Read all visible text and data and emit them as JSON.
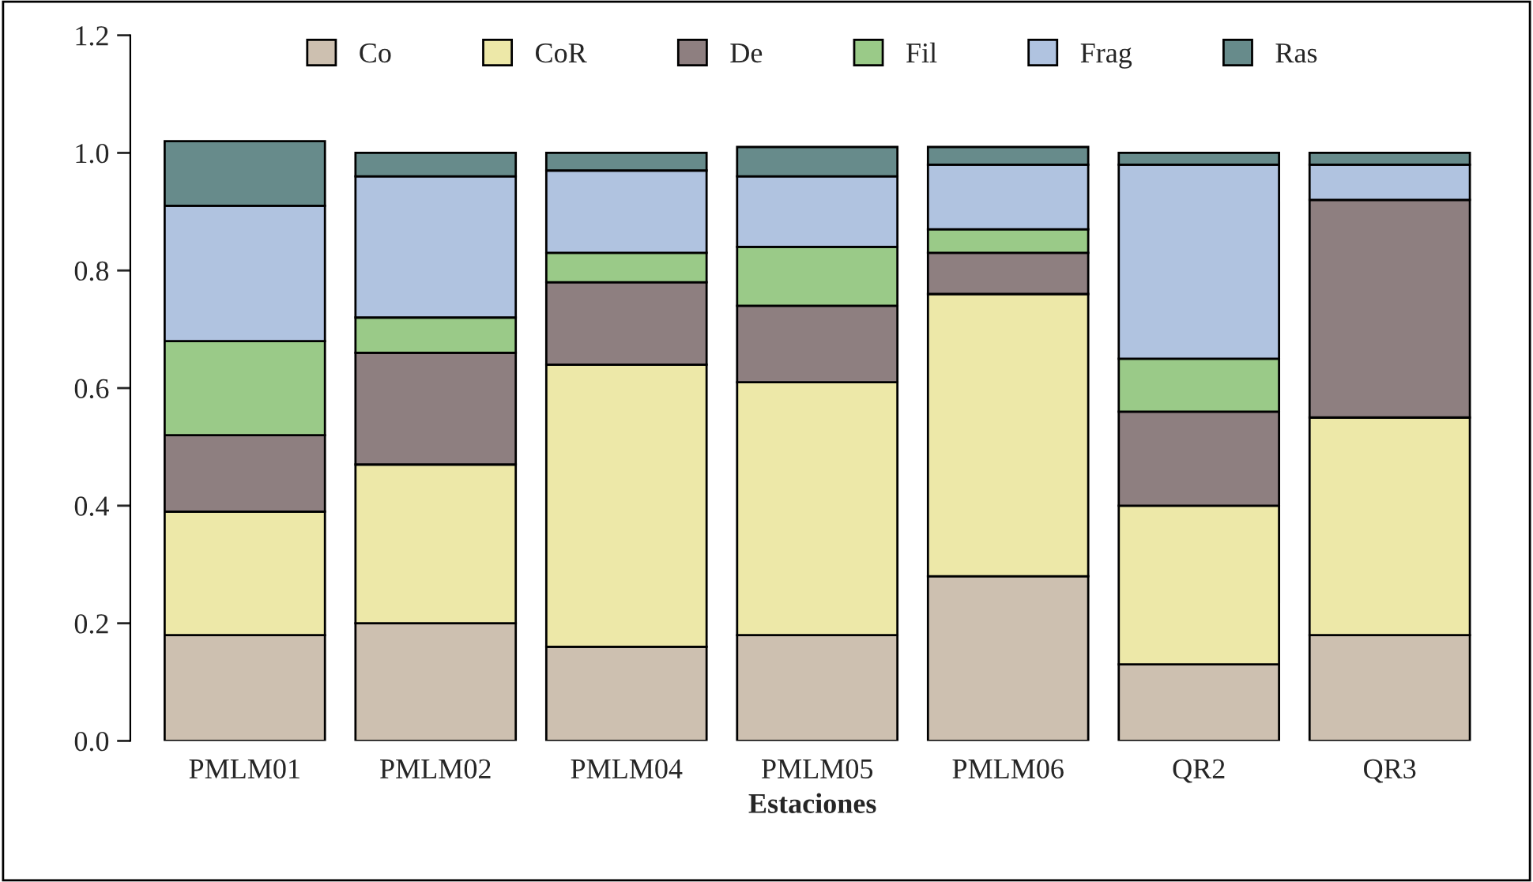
{
  "chart_data": {
    "type": "bar",
    "stacked": true,
    "xlabel": "Estaciones",
    "categories": [
      "PMLM01",
      "PMLM02",
      "PMLM04",
      "PMLM05",
      "PMLM06",
      "QR2",
      "QR3"
    ],
    "series": [
      {
        "name": "Co",
        "color": "#cdc0b0",
        "values": [
          0.18,
          0.2,
          0.16,
          0.18,
          0.28,
          0.13,
          0.18
        ]
      },
      {
        "name": "CoR",
        "color": "#ede8a8",
        "values": [
          0.21,
          0.27,
          0.48,
          0.43,
          0.48,
          0.27,
          0.37
        ]
      },
      {
        "name": "De",
        "color": "#8e7f80",
        "values": [
          0.13,
          0.19,
          0.14,
          0.13,
          0.07,
          0.16,
          0.37
        ]
      },
      {
        "name": "Fil",
        "color": "#9aca88",
        "values": [
          0.16,
          0.06,
          0.05,
          0.1,
          0.04,
          0.09,
          0.0
        ]
      },
      {
        "name": "Frag",
        "color": "#b0c3e0",
        "values": [
          0.23,
          0.24,
          0.14,
          0.12,
          0.11,
          0.33,
          0.06
        ]
      },
      {
        "name": "Ras",
        "color": "#678b8b",
        "values": [
          0.11,
          0.04,
          0.03,
          0.05,
          0.03,
          0.02,
          0.02
        ]
      }
    ],
    "ylim": [
      0,
      1.2
    ],
    "yticks": [
      {
        "value": 0,
        "label": "0.0"
      },
      {
        "value": 0.2,
        "label": "0.2"
      },
      {
        "value": 0.4,
        "label": "0.4"
      },
      {
        "value": 0.6,
        "label": "0.6"
      },
      {
        "value": 0.8,
        "label": "0.8"
      },
      {
        "value": 1.0,
        "label": "1.0"
      },
      {
        "value": 1.2,
        "label": "1.2"
      }
    ],
    "legend": "top",
    "grid": false
  }
}
